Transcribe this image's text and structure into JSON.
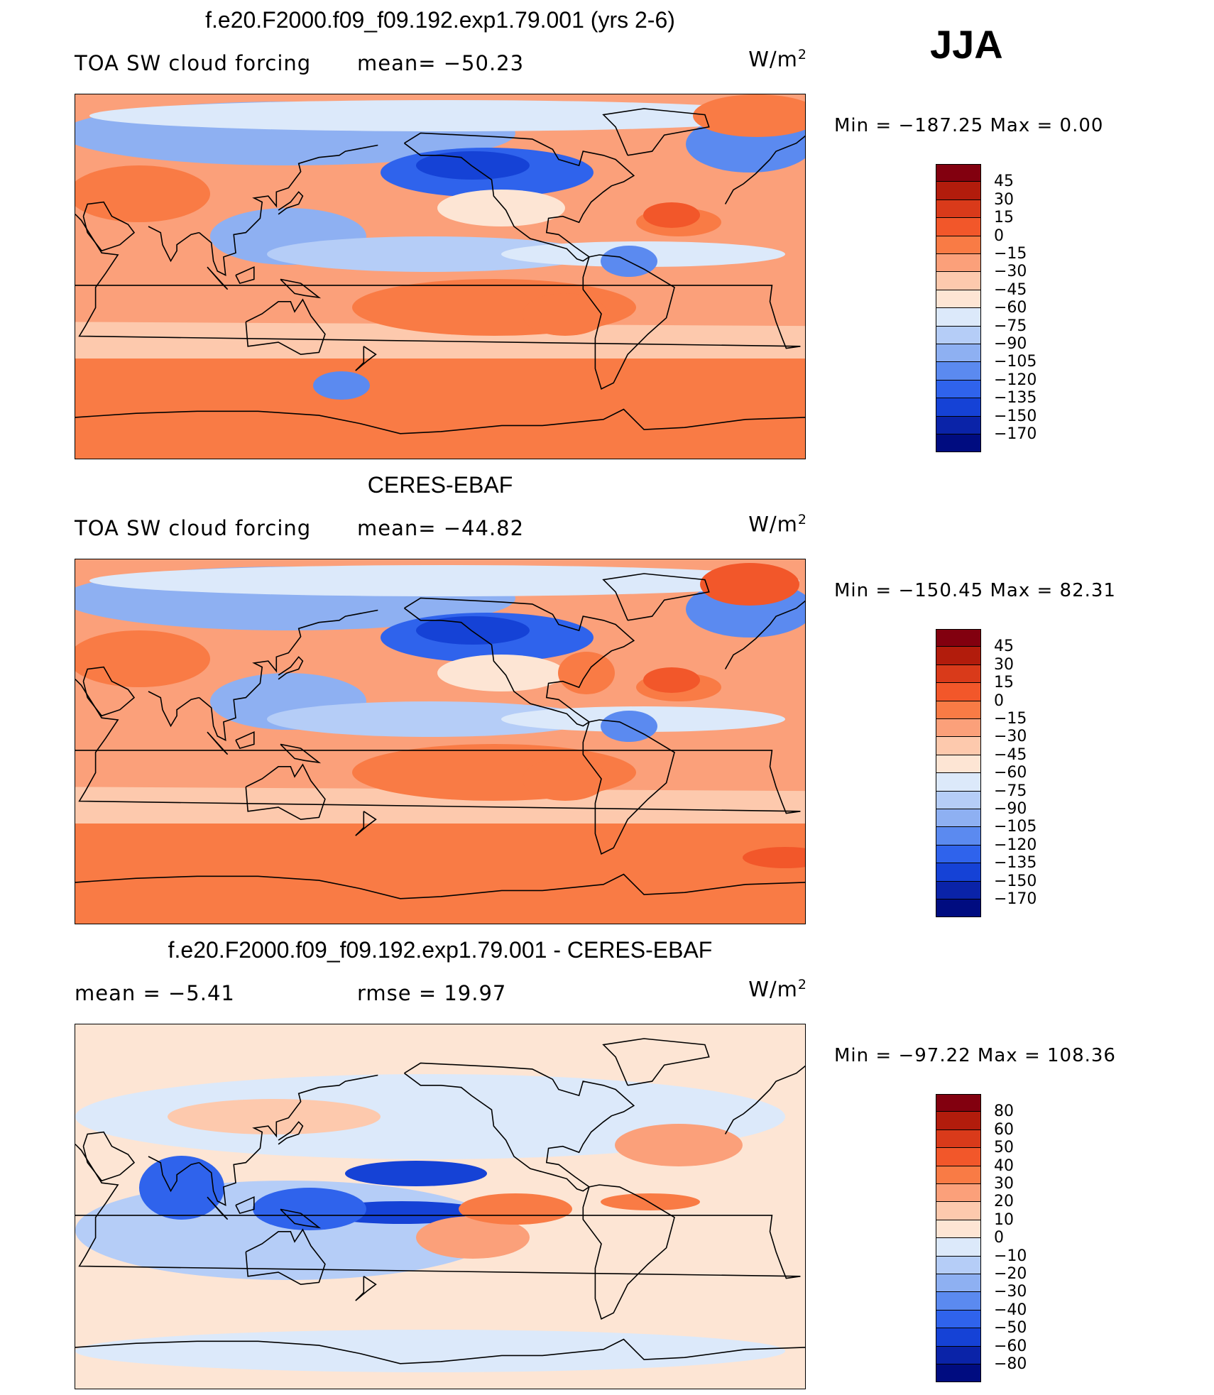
{
  "season": "JJA",
  "colors": {
    "ocean_default": "#f7b89c",
    "coast": "#000000",
    "scale13": [
      "#82000f",
      "#b21c0c",
      "#d93a1a",
      "#f2572a",
      "#f97b45",
      "#fba07a",
      "#fdc9ad",
      "#fde5d4",
      "#dce9fa",
      "#b5cdf7",
      "#8eb0f2",
      "#5b8af0",
      "#2f63ec",
      "#1542d6",
      "#0a23a8",
      "#000c80"
    ]
  },
  "chart_data": [
    {
      "type": "heatmap",
      "title": "f.e20.F2000.f09_f09.192.exp1.79.001 (yrs 2-6)",
      "variable": "TOA SW cloud forcing",
      "stat_text": "mean=  −50.23",
      "units": "W/m²",
      "mean": -50.23,
      "minmax_text": "Min  =  −187.25  Max  =     0.00",
      "min": -187.25,
      "max": 0.0,
      "colorbar_levels": [
        "45",
        "30",
        "15",
        "0",
        "−15",
        "−30",
        "−45",
        "−60",
        "−75",
        "−90",
        "−105",
        "−120",
        "−135",
        "−150",
        "−170"
      ],
      "field_style": "model"
    },
    {
      "type": "heatmap",
      "title": "CERES-EBAF",
      "variable": "TOA SW cloud forcing",
      "stat_text": "mean=  −44.82",
      "units": "W/m²",
      "mean": -44.82,
      "minmax_text": "Min  =  −150.45  Max  =    82.31",
      "min": -150.45,
      "max": 82.31,
      "colorbar_levels": [
        "45",
        "30",
        "15",
        "0",
        "−15",
        "−30",
        "−45",
        "−60",
        "−75",
        "−90",
        "−105",
        "−120",
        "−135",
        "−150",
        "−170"
      ],
      "field_style": "obs"
    },
    {
      "type": "heatmap",
      "title": "f.e20.F2000.f09_f09.192.exp1.79.001 - CERES-EBAF",
      "variable": "mean  =    −5.41",
      "stat_text": "rmse  =    19.97",
      "units": "W/m²",
      "mean": -5.41,
      "rmse": 19.97,
      "minmax_text": "Min  =  −97.22  Max  =  108.36",
      "min": -97.22,
      "max": 108.36,
      "colorbar_levels": [
        "80",
        "60",
        "50",
        "40",
        "30",
        "20",
        "10",
        "0",
        "−10",
        "−20",
        "−30",
        "−40",
        "−50",
        "−60",
        "−80"
      ],
      "field_style": "diff"
    }
  ]
}
